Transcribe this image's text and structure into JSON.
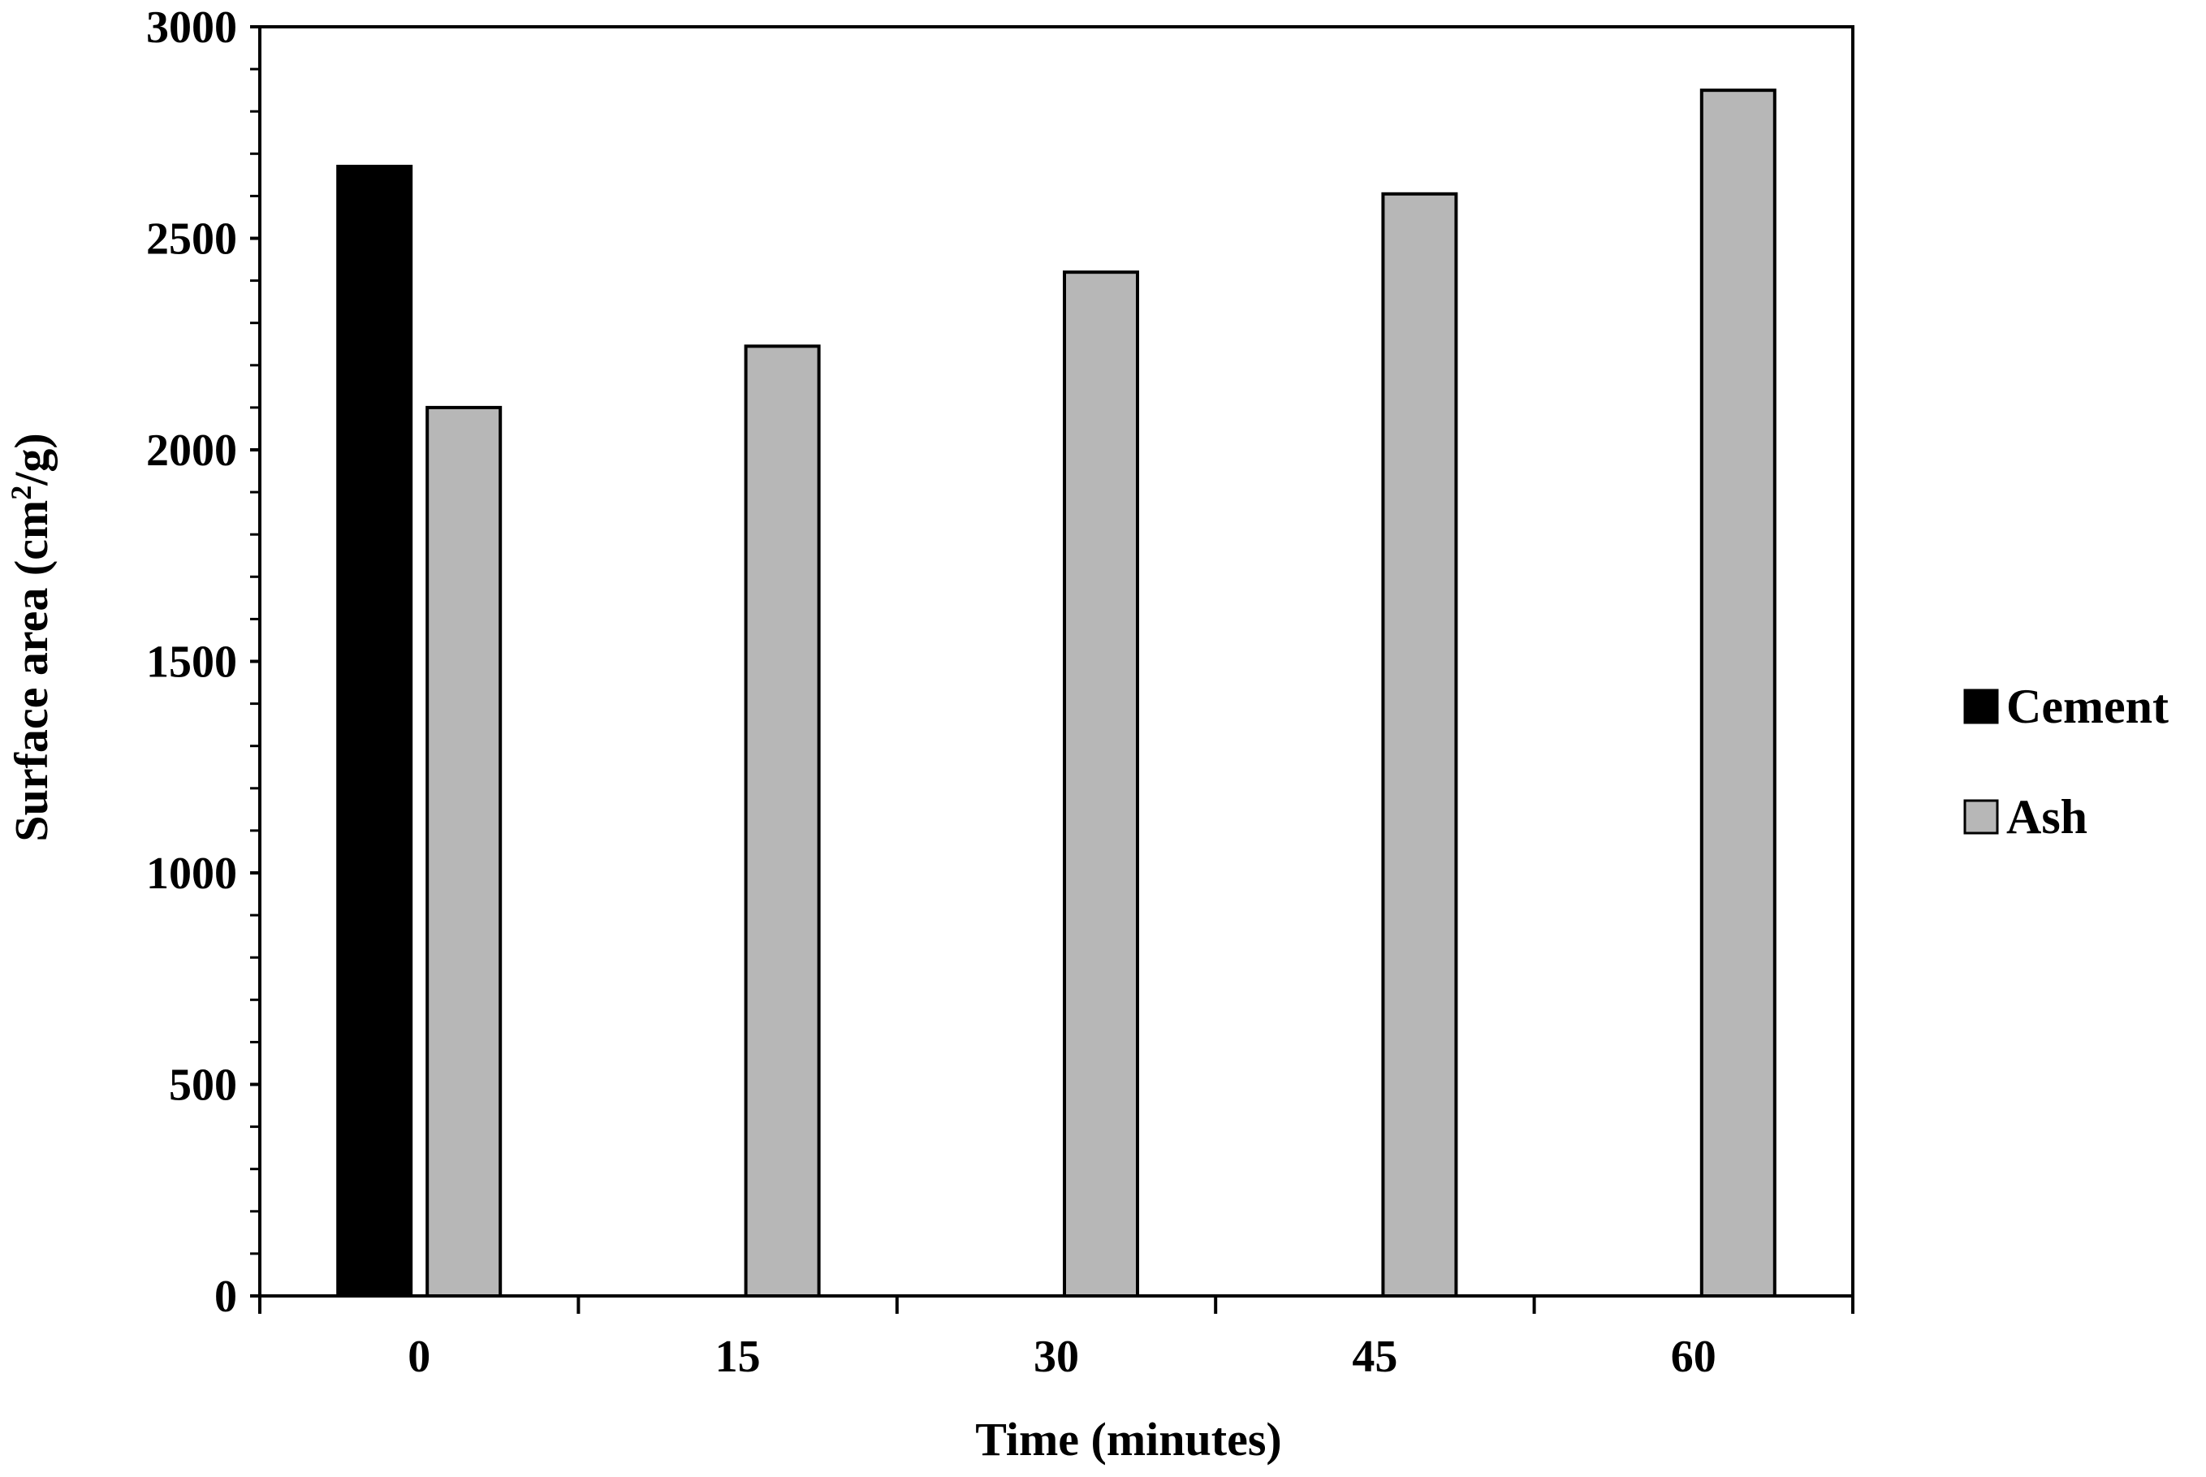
{
  "chart_data": {
    "type": "bar",
    "title": "",
    "xlabel": "Time (minutes)",
    "ylabel": {
      "before": "Surface area (cm",
      "sup": "2",
      "after": "/g)"
    },
    "categories": [
      "0",
      "15",
      "30",
      "45",
      "60"
    ],
    "ylim": [
      0,
      3000
    ],
    "yticks": [
      "0",
      "500",
      "1000",
      "1500",
      "2000",
      "2500",
      "3000"
    ],
    "y_minor_step": 100,
    "grid": false,
    "legend_position": "right",
    "series": [
      {
        "name": "Cement",
        "color": "#000000",
        "values": [
          2670,
          null,
          null,
          null,
          null
        ]
      },
      {
        "name": "Ash",
        "color": "#b7b7b7",
        "values": [
          2100,
          2245,
          2420,
          2605,
          2850
        ]
      }
    ]
  }
}
